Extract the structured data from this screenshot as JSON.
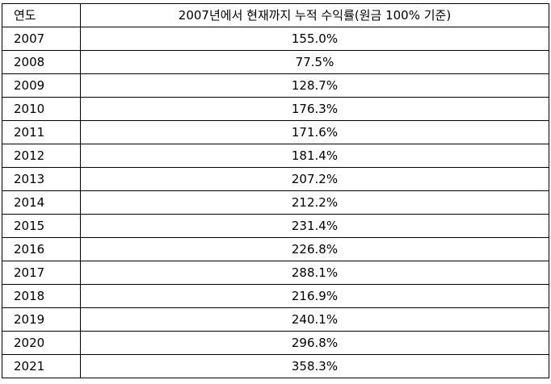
{
  "table": {
    "headers": {
      "year": "연도",
      "return": "2007년에서 현재까지 누적 수익률(원금 100% 기준)"
    },
    "rows": [
      {
        "year": "2007",
        "value": "155.0%"
      },
      {
        "year": "2008",
        "value": "77.5%"
      },
      {
        "year": "2009",
        "value": "128.7%"
      },
      {
        "year": "2010",
        "value": "176.3%"
      },
      {
        "year": "2011",
        "value": "171.6%"
      },
      {
        "year": "2012",
        "value": "181.4%"
      },
      {
        "year": "2013",
        "value": "207.2%"
      },
      {
        "year": "2014",
        "value": "212.2%"
      },
      {
        "year": "2015",
        "value": "231.4%"
      },
      {
        "year": "2016",
        "value": "226.8%"
      },
      {
        "year": "2017",
        "value": "288.1%"
      },
      {
        "year": "2018",
        "value": "216.9%"
      },
      {
        "year": "2019",
        "value": "240.1%"
      },
      {
        "year": "2020",
        "value": "296.8%"
      },
      {
        "year": "2021",
        "value": "358.3%"
      }
    ]
  }
}
